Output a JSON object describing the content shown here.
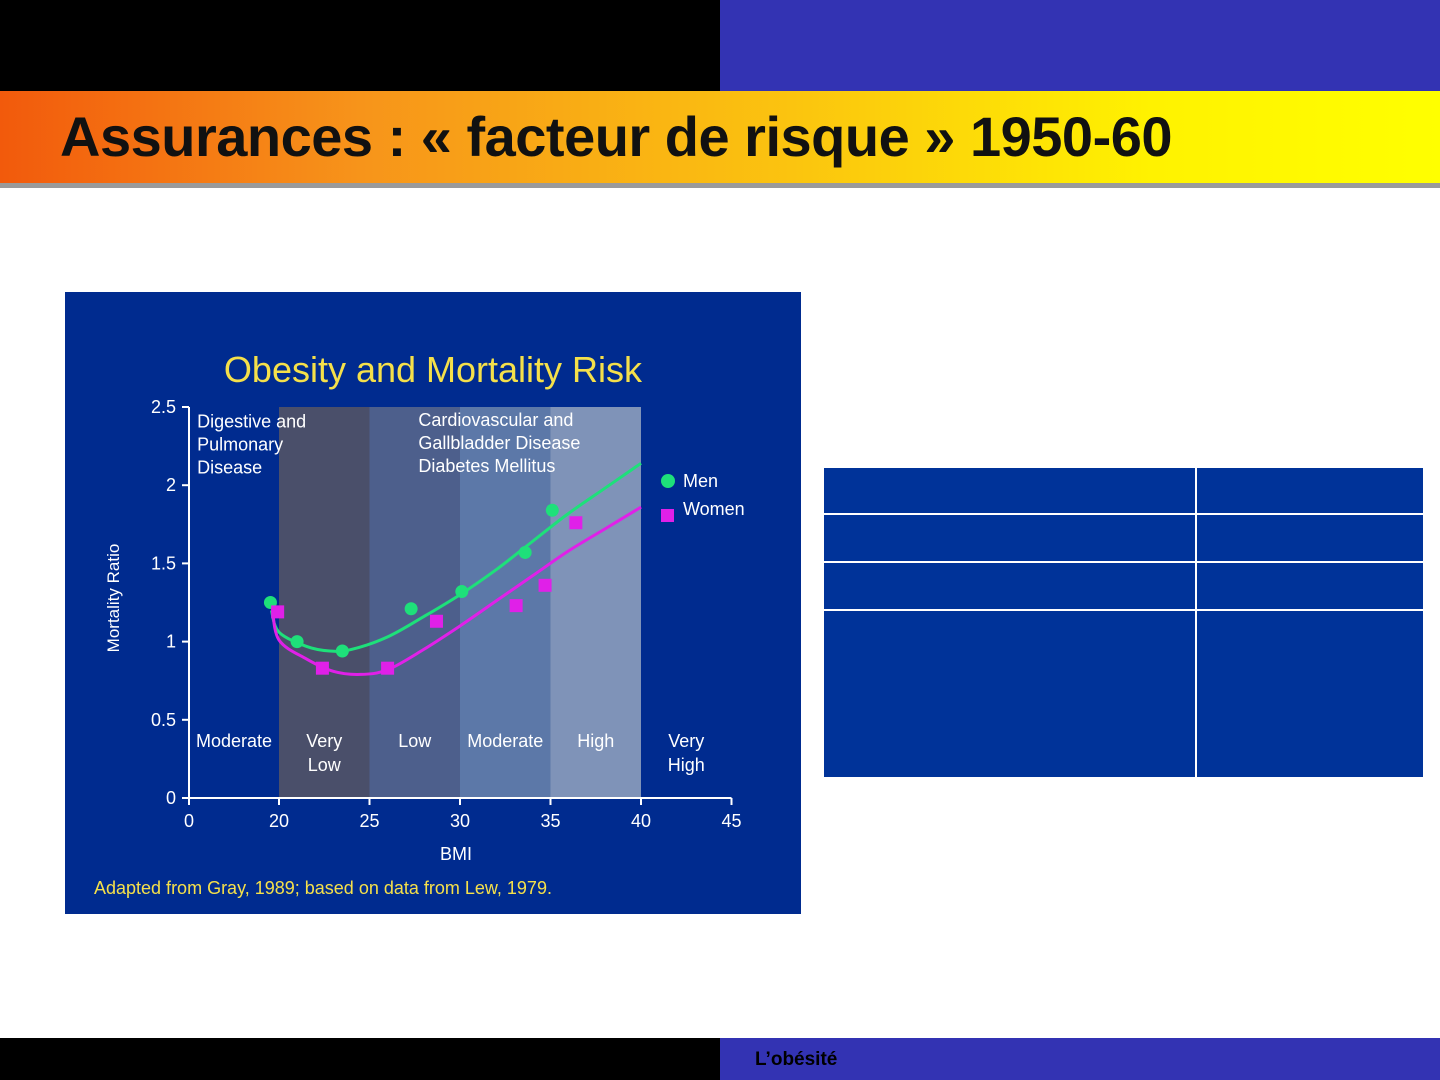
{
  "slide": {
    "title": "Assurances : « facteur de risque » 1950-60",
    "footer": "L’obésité"
  },
  "colors": {
    "top_right": "#3333b3",
    "figure_bg": "#002b8f",
    "men": "#1ee07a",
    "women": "#e020e8",
    "title_text": "#f5e04a",
    "table_cell": "#003399"
  },
  "table": {
    "rows": [
      [
        "",
        ""
      ],
      [
        "",
        ""
      ],
      [
        "",
        ""
      ],
      [
        "",
        ""
      ]
    ]
  },
  "chart_data": {
    "type": "scatter",
    "title": "Obesity and Mortality Risk",
    "xlabel": "BMI",
    "ylabel": "Mortality Ratio",
    "xlim": [
      0,
      45
    ],
    "ylim": [
      0,
      2.5
    ],
    "x_ticks": [
      "0",
      "20",
      "25",
      "30",
      "35",
      "40",
      "45"
    ],
    "y_ticks": [
      "0",
      "0.5",
      "1",
      "1.5",
      "2",
      "2.5"
    ],
    "legend_position": "right",
    "risk_bands": [
      {
        "from": 0,
        "to": 20,
        "label": [
          "Moderate"
        ],
        "shade": "none"
      },
      {
        "from": 20,
        "to": 25,
        "label": [
          "Very",
          "Low"
        ],
        "shade": "#4a4f6a"
      },
      {
        "from": 25,
        "to": 30,
        "label": [
          "Low"
        ],
        "shade": "#4d5f8c"
      },
      {
        "from": 30,
        "to": 35,
        "label": [
          "Moderate"
        ],
        "shade": "#5c78a8"
      },
      {
        "from": 35,
        "to": 40,
        "label": [
          "High"
        ],
        "shade": "#7f93b8"
      },
      {
        "from": 40,
        "to": 45,
        "label": [
          "Very",
          "High"
        ],
        "shade": "none"
      }
    ],
    "annotations": [
      {
        "lines": [
          "Digestive and",
          "Pulmonary",
          "Disease"
        ],
        "x": 1.8,
        "y": 2.37
      },
      {
        "lines": [
          "Cardiovascular and",
          "Gallbladder Disease",
          "Diabetes Mellitus"
        ],
        "x": 27.7,
        "y": 2.38
      }
    ],
    "series": [
      {
        "name": "Men",
        "marker": "circle",
        "color": "#1ee07a",
        "points": [
          [
            18.1,
            1.25
          ],
          [
            21.0,
            1.0
          ],
          [
            23.5,
            0.94
          ],
          [
            27.3,
            1.21
          ],
          [
            30.1,
            1.32
          ],
          [
            33.6,
            1.57
          ],
          [
            35.1,
            1.84
          ]
        ],
        "curve": [
          [
            18.3,
            1.2
          ],
          [
            20.0,
            1.06
          ],
          [
            21.5,
            0.97
          ],
          [
            22.8,
            0.94
          ],
          [
            24.0,
            0.95
          ],
          [
            26.0,
            1.03
          ],
          [
            28.0,
            1.16
          ],
          [
            30.0,
            1.3
          ],
          [
            32.0,
            1.46
          ],
          [
            34.0,
            1.64
          ],
          [
            36.0,
            1.82
          ],
          [
            38.0,
            1.98
          ],
          [
            40.0,
            2.14
          ]
        ]
      },
      {
        "name": "Women",
        "marker": "square",
        "color": "#e020e8",
        "points": [
          [
            19.7,
            1.19
          ],
          [
            22.4,
            0.83
          ],
          [
            26.0,
            0.83
          ],
          [
            28.7,
            1.13
          ],
          [
            33.1,
            1.23
          ],
          [
            34.7,
            1.36
          ],
          [
            36.4,
            1.76
          ]
        ],
        "curve": [
          [
            18.5,
            1.22
          ],
          [
            20.0,
            1.01
          ],
          [
            21.5,
            0.89
          ],
          [
            23.0,
            0.81
          ],
          [
            24.5,
            0.79
          ],
          [
            26.0,
            0.82
          ],
          [
            28.0,
            0.95
          ],
          [
            30.0,
            1.1
          ],
          [
            32.0,
            1.26
          ],
          [
            34.0,
            1.42
          ],
          [
            36.0,
            1.58
          ],
          [
            38.0,
            1.72
          ],
          [
            40.0,
            1.86
          ]
        ]
      }
    ],
    "footnote": "Adapted from Gray, 1989; based on data from Lew, 1979."
  }
}
